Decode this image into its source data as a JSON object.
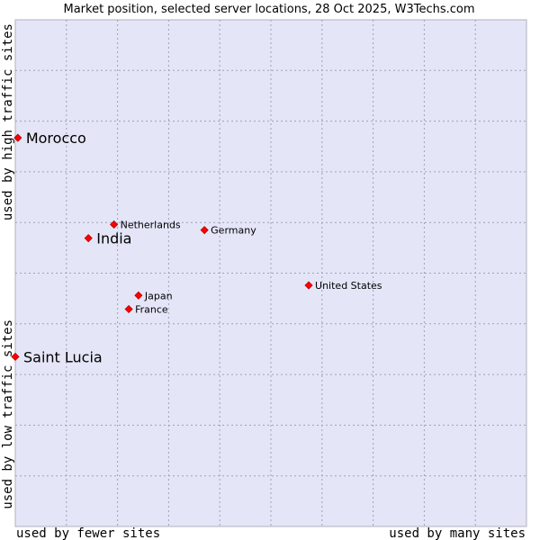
{
  "chart_data": {
    "type": "scatter",
    "title": "Market position, selected server locations, 28 Oct 2025, W3Techs.com",
    "xlabel_low": "used by fewer sites",
    "xlabel_high": "used by many sites",
    "ylabel_low": "used by low traffic sites",
    "ylabel_high": "used by high traffic sites",
    "xlim": [
      0,
      100
    ],
    "ylim": [
      0,
      100
    ],
    "grid": true,
    "colors": {
      "background": "#e4e6f8",
      "marker": "#ff0000",
      "grid": "#a0a0b8"
    },
    "points": [
      {
        "label": "Morocco",
        "x": 0.5,
        "y": 76.7,
        "emphasis": true
      },
      {
        "label": "Netherlands",
        "x": 19.3,
        "y": 59.6,
        "emphasis": false
      },
      {
        "label": "Germany",
        "x": 37.0,
        "y": 58.5,
        "emphasis": false
      },
      {
        "label": "India",
        "x": 14.3,
        "y": 56.9,
        "emphasis": true
      },
      {
        "label": "United States",
        "x": 57.4,
        "y": 47.6,
        "emphasis": false
      },
      {
        "label": "Japan",
        "x": 24.1,
        "y": 45.6,
        "emphasis": false
      },
      {
        "label": "France",
        "x": 22.2,
        "y": 42.9,
        "emphasis": false
      },
      {
        "label": "Saint Lucia",
        "x": 0.0,
        "y": 33.5,
        "emphasis": true
      }
    ]
  }
}
